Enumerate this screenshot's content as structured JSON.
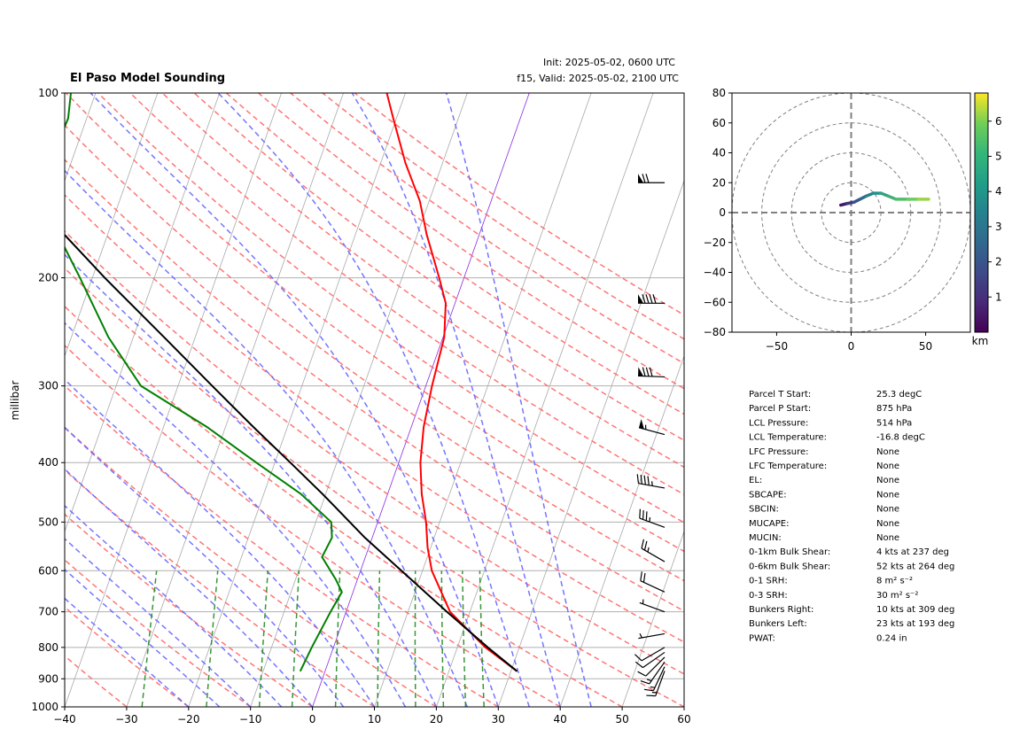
{
  "chart_data": [
    {
      "type": "line",
      "title": "El Paso Model Sounding",
      "init_text": "Init: 2025-05-02, 0600 UTC",
      "valid_text": "f15, Valid: 2025-05-02, 2100 UTC",
      "ylabel": "millibar",
      "xlim": [
        -40,
        60
      ],
      "ylim": [
        1000,
        100
      ],
      "y_scale": "log",
      "x_ticks": [
        "−40",
        "−30",
        "−20",
        "−10",
        "0",
        "10",
        "20",
        "30",
        "40",
        "50",
        "60"
      ],
      "y_ticks": [
        "100",
        "200",
        "300",
        "400",
        "500",
        "600",
        "700",
        "800",
        "900",
        "1000"
      ],
      "series": [
        {
          "color": "#ff0000",
          "points": [
            [
              875,
              31.0
            ],
            [
              800,
              24.5
            ],
            [
              700,
              16.8
            ],
            [
              600,
              11.5
            ],
            [
              550,
              9.5
            ],
            [
              500,
              7.8
            ],
            [
              450,
              5.5
            ],
            [
              400,
              3.5
            ],
            [
              350,
              2.0
            ],
            [
              300,
              1.0
            ],
            [
              250,
              0.2
            ],
            [
              220,
              -1.5
            ],
            [
              200,
              -4.0
            ],
            [
              170,
              -8.5
            ],
            [
              150,
              -11.5
            ],
            [
              130,
              -16.0
            ],
            [
              110,
              -20.5
            ],
            [
              100,
              -23.0
            ]
          ]
        },
        {
          "color": "#008000",
          "points": [
            [
              875,
              -4.0
            ],
            [
              800,
              -3.5
            ],
            [
              700,
              -2.5
            ],
            [
              650,
              -1.8
            ],
            [
              620,
              -3.5
            ],
            [
              570,
              -7.0
            ],
            [
              530,
              -6.5
            ],
            [
              500,
              -7.5
            ],
            [
              450,
              -14.0
            ],
            [
              400,
              -23.0
            ],
            [
              350,
              -33.0
            ],
            [
              300,
              -46.0
            ],
            [
              250,
              -54.0
            ],
            [
              200,
              -62.0
            ],
            [
              170,
              -68.0
            ],
            [
              150,
              -73.0
            ],
            [
              130,
              -73.5
            ],
            [
              110,
              -73.0
            ],
            [
              100,
              -74.0
            ]
          ]
        },
        {
          "color": "#000000",
          "points": [
            [
              875,
              31.0
            ],
            [
              800,
              24.9
            ],
            [
              700,
              16.3
            ],
            [
              600,
              6.6
            ],
            [
              530,
              -1.2
            ],
            [
              500,
              -4.5
            ],
            [
              450,
              -10.5
            ],
            [
              400,
              -17.5
            ],
            [
              350,
              -25.5
            ],
            [
              300,
              -34.5
            ],
            [
              250,
              -45.0
            ],
            [
              200,
              -58.0
            ],
            [
              170,
              -67.0
            ],
            [
              150,
              -73.5
            ],
            [
              130,
              -81.5
            ],
            [
              110,
              -88.0
            ],
            [
              100,
              -91.0
            ]
          ]
        }
      ],
      "wind_barbs": [
        {
          "p": 874,
          "speed_kts": 14,
          "dir_deg": 200
        },
        {
          "p": 860,
          "speed_kts": 16,
          "dir_deg": 205
        },
        {
          "p": 845,
          "speed_kts": 15,
          "dir_deg": 215
        },
        {
          "p": 830,
          "speed_kts": 12,
          "dir_deg": 225
        },
        {
          "p": 815,
          "speed_kts": 10,
          "dir_deg": 235
        },
        {
          "p": 800,
          "speed_kts": 8,
          "dir_deg": 240
        },
        {
          "p": 760,
          "speed_kts": 6,
          "dir_deg": 260
        },
        {
          "p": 700,
          "speed_kts": 5,
          "dir_deg": 290
        },
        {
          "p": 650,
          "speed_kts": 18,
          "dir_deg": 295
        },
        {
          "p": 580,
          "speed_kts": 25,
          "dir_deg": 300
        },
        {
          "p": 510,
          "speed_kts": 35,
          "dir_deg": 290
        },
        {
          "p": 440,
          "speed_kts": 45,
          "dir_deg": 280
        },
        {
          "p": 360,
          "speed_kts": 55,
          "dir_deg": 285
        },
        {
          "p": 290,
          "speed_kts": 80,
          "dir_deg": 272
        },
        {
          "p": 220,
          "speed_kts": 90,
          "dir_deg": 270
        },
        {
          "p": 140,
          "speed_kts": 70,
          "dir_deg": 270
        }
      ]
    },
    {
      "type": "line",
      "xlim": [
        -80,
        80
      ],
      "ylim": [
        -80,
        80
      ],
      "x_ticks": [
        "−50",
        "0",
        "50"
      ],
      "y_ticks": [
        "80",
        "60",
        "40",
        "20",
        "0",
        "−20",
        "−40",
        "−60",
        "−80"
      ],
      "colorbar_ticks": [
        "6",
        "5",
        "4",
        "3",
        "2",
        "1"
      ],
      "colorbar_label": "km",
      "colorbar_range": [
        0,
        6.8
      ],
      "rings": [
        20,
        40,
        60,
        80
      ],
      "points": [
        {
          "u": -7,
          "v": 5,
          "h": 0.2
        },
        {
          "u": -3,
          "v": 6,
          "h": 0.8
        },
        {
          "u": 2,
          "v": 7,
          "h": 1.5
        },
        {
          "u": 6,
          "v": 9,
          "h": 2.0
        },
        {
          "u": 10,
          "v": 11,
          "h": 2.6
        },
        {
          "u": 15,
          "v": 13,
          "h": 3.2
        },
        {
          "u": 20,
          "v": 13,
          "h": 3.7
        },
        {
          "u": 25,
          "v": 11,
          "h": 4.1
        },
        {
          "u": 30,
          "v": 9,
          "h": 4.5
        },
        {
          "u": 38,
          "v": 9,
          "h": 5.0
        },
        {
          "u": 45,
          "v": 9,
          "h": 5.5
        },
        {
          "u": 52,
          "v": 9,
          "h": 6.0
        }
      ]
    }
  ],
  "parameters": [
    {
      "label": "Parcel T Start:",
      "value": "25.3 degC"
    },
    {
      "label": "Parcel P Start:",
      "value": "875 hPa"
    },
    {
      "label": "LCL Pressure:",
      "value": "514 hPa"
    },
    {
      "label": "LCL Temperature:",
      "value": "-16.8 degC"
    },
    {
      "label": "LFC Pressure:",
      "value": "None"
    },
    {
      "label": "LFC Temperature:",
      "value": "None"
    },
    {
      "label": "EL:",
      "value": "None"
    },
    {
      "label": "SBCAPE:",
      "value": "None"
    },
    {
      "label": "SBCIN:",
      "value": "None"
    },
    {
      "label": "MUCAPE:",
      "value": "None"
    },
    {
      "label": "MUCIN:",
      "value": "None"
    },
    {
      "label": "0-1km Bulk Shear:",
      "value": "4 kts at 237 deg"
    },
    {
      "label": "0-6km Bulk Shear:",
      "value": "52 kts at 264 deg"
    },
    {
      "label": "0-1 SRH:",
      "value": "8 m² s⁻²"
    },
    {
      "label": "0-3 SRH:",
      "value": "30 m² s⁻²"
    },
    {
      "label": "Bunkers Right:",
      "value": "10 kts at 309 deg"
    },
    {
      "label": "Bunkers Left:",
      "value": "23 kts at 193 deg"
    },
    {
      "label": "PWAT:",
      "value": "0.24 in"
    }
  ],
  "colors": {
    "temperature": "#ff0000",
    "dewpoint": "#008000",
    "parcel": "#000000",
    "dry_adiabat": "#ff6666",
    "moist_adiabat": "#6666ff",
    "mixing_ratio": "#228b22",
    "isotherm": "#a9a9a9",
    "zero_isotherm": "#8a2be2"
  }
}
